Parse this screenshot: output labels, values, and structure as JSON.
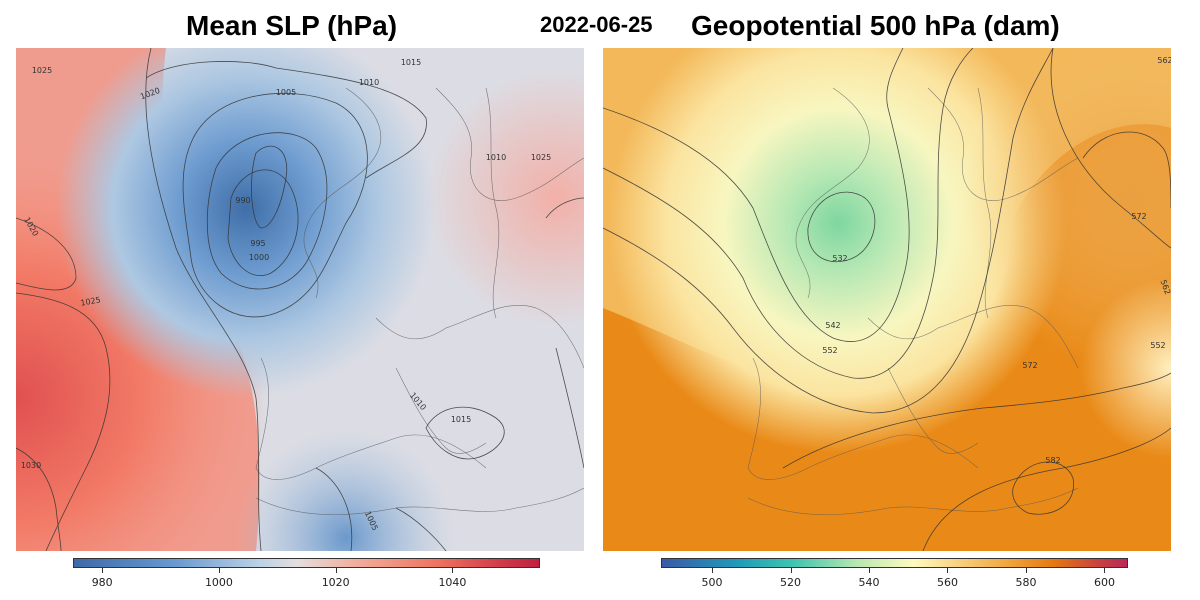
{
  "date": "2022-06-25",
  "panels": {
    "left": {
      "title": "Mean SLP (hPa)",
      "colorbar": {
        "ticks": [
          "980",
          "1000",
          "1020",
          "1040"
        ],
        "range": [
          975,
          1055
        ]
      },
      "contour_labels": [
        "1025",
        "1020",
        "1015",
        "1010",
        "1005",
        "1000",
        "995",
        "990",
        "1020",
        "1025",
        "1030",
        "1010",
        "1015",
        "1010",
        "1005",
        "1025"
      ],
      "colors": {
        "low": "#3d6aa8",
        "mid": "#e4dede",
        "high": "#c02040"
      }
    },
    "right": {
      "title": "Geopotential 500 hPa (dam)",
      "colorbar": {
        "ticks": [
          "500",
          "520",
          "540",
          "560",
          "580",
          "600"
        ],
        "range": [
          487,
          606
        ]
      },
      "contour_labels": [
        "532",
        "542",
        "552",
        "572",
        "562",
        "552",
        "582",
        "572",
        "562"
      ],
      "colors": {
        "low": "#3b5aa8",
        "mid": "#fffbc0",
        "high": "#b82858"
      }
    }
  }
}
